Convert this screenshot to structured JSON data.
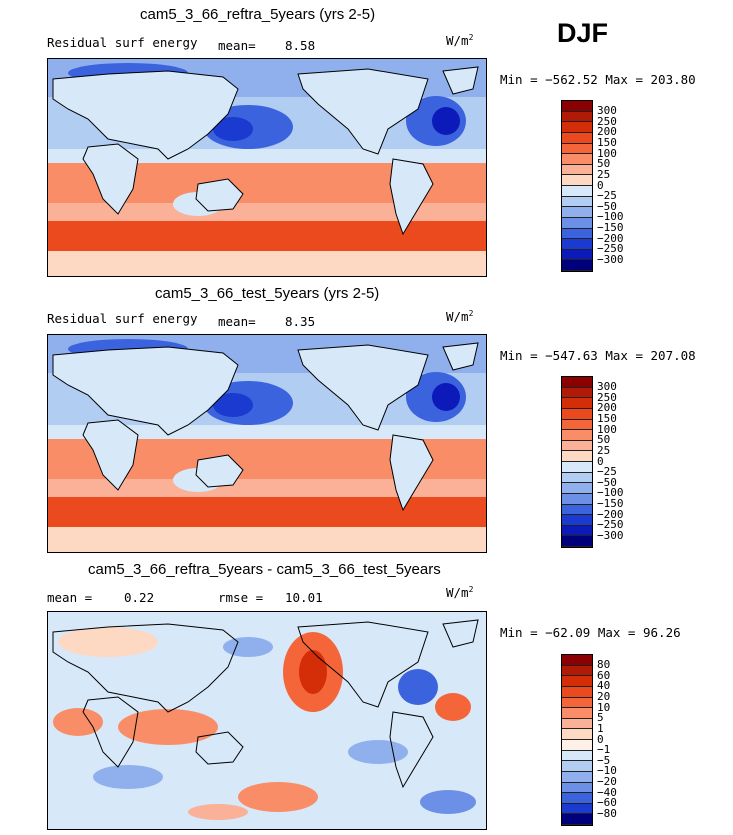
{
  "season": "DJF",
  "chart_data": [
    {
      "type": "heatmap",
      "title": "cam5_3_66_reftra_5years (yrs 2-5)",
      "subtitle_left": "Residual surf energy",
      "stat1_label": "mean=",
      "stat1_value": "8.58",
      "units": "W/m",
      "units_exp": "2",
      "minmax_text": "Min = −562.52  Max = 203.80",
      "min": -562.52,
      "max": 203.8,
      "colorbar": {
        "levels": [
          "300",
          "250",
          "200",
          "150",
          "100",
          "50",
          "25",
          "0",
          "−25",
          "−50",
          "−100",
          "−150",
          "−200",
          "−250",
          "−300"
        ],
        "colors": [
          "#8b0000",
          "#b01a06",
          "#d42e08",
          "#ea4a1e",
          "#f4663a",
          "#f88d68",
          "#fab198",
          "#fdd9c4",
          "#d7e8f8",
          "#b2cdf2",
          "#8fb0ec",
          "#6b90e6",
          "#3b63dd",
          "#1a3ad0",
          "#0b1ab8",
          "#00007a"
        ]
      }
    },
    {
      "type": "heatmap",
      "title": "cam5_3_66_test_5years (yrs 2-5)",
      "subtitle_left": "Residual surf energy",
      "stat1_label": "mean=",
      "stat1_value": "8.35",
      "units": "W/m",
      "units_exp": "2",
      "minmax_text": "Min = −547.63  Max = 207.08",
      "min": -547.63,
      "max": 207.08,
      "colorbar": {
        "levels": [
          "300",
          "250",
          "200",
          "150",
          "100",
          "50",
          "25",
          "0",
          "−25",
          "−50",
          "−100",
          "−150",
          "−200",
          "−250",
          "−300"
        ],
        "colors": [
          "#8b0000",
          "#b01a06",
          "#d42e08",
          "#ea4a1e",
          "#f4663a",
          "#f88d68",
          "#fab198",
          "#fdd9c4",
          "#d7e8f8",
          "#b2cdf2",
          "#8fb0ec",
          "#6b90e6",
          "#3b63dd",
          "#1a3ad0",
          "#0b1ab8",
          "#00007a"
        ]
      }
    },
    {
      "type": "heatmap",
      "title": "cam5_3_66_reftra_5years - cam5_3_66_test_5years",
      "subtitle_left": "mean =",
      "subtitle_left_value": "0.22",
      "stat1_label": "rmse =",
      "stat1_value": "10.01",
      "units": "W/m",
      "units_exp": "2",
      "minmax_text": "Min = −62.09  Max =   96.26",
      "min": -62.09,
      "max": 96.26,
      "colorbar": {
        "levels": [
          "80",
          "60",
          "40",
          "20",
          "10",
          "5",
          "1",
          "0",
          "−1",
          "−5",
          "−10",
          "−20",
          "−40",
          "−60",
          "−80"
        ],
        "colors": [
          "#8b0000",
          "#b01a06",
          "#d42e08",
          "#ea4a1e",
          "#f4663a",
          "#f88d68",
          "#fab198",
          "#fdd9c4",
          "#fdf0e6",
          "#d7e8f8",
          "#b2cdf2",
          "#8fb0ec",
          "#6b90e6",
          "#3b63dd",
          "#1a3ad0",
          "#00007a"
        ]
      }
    }
  ]
}
